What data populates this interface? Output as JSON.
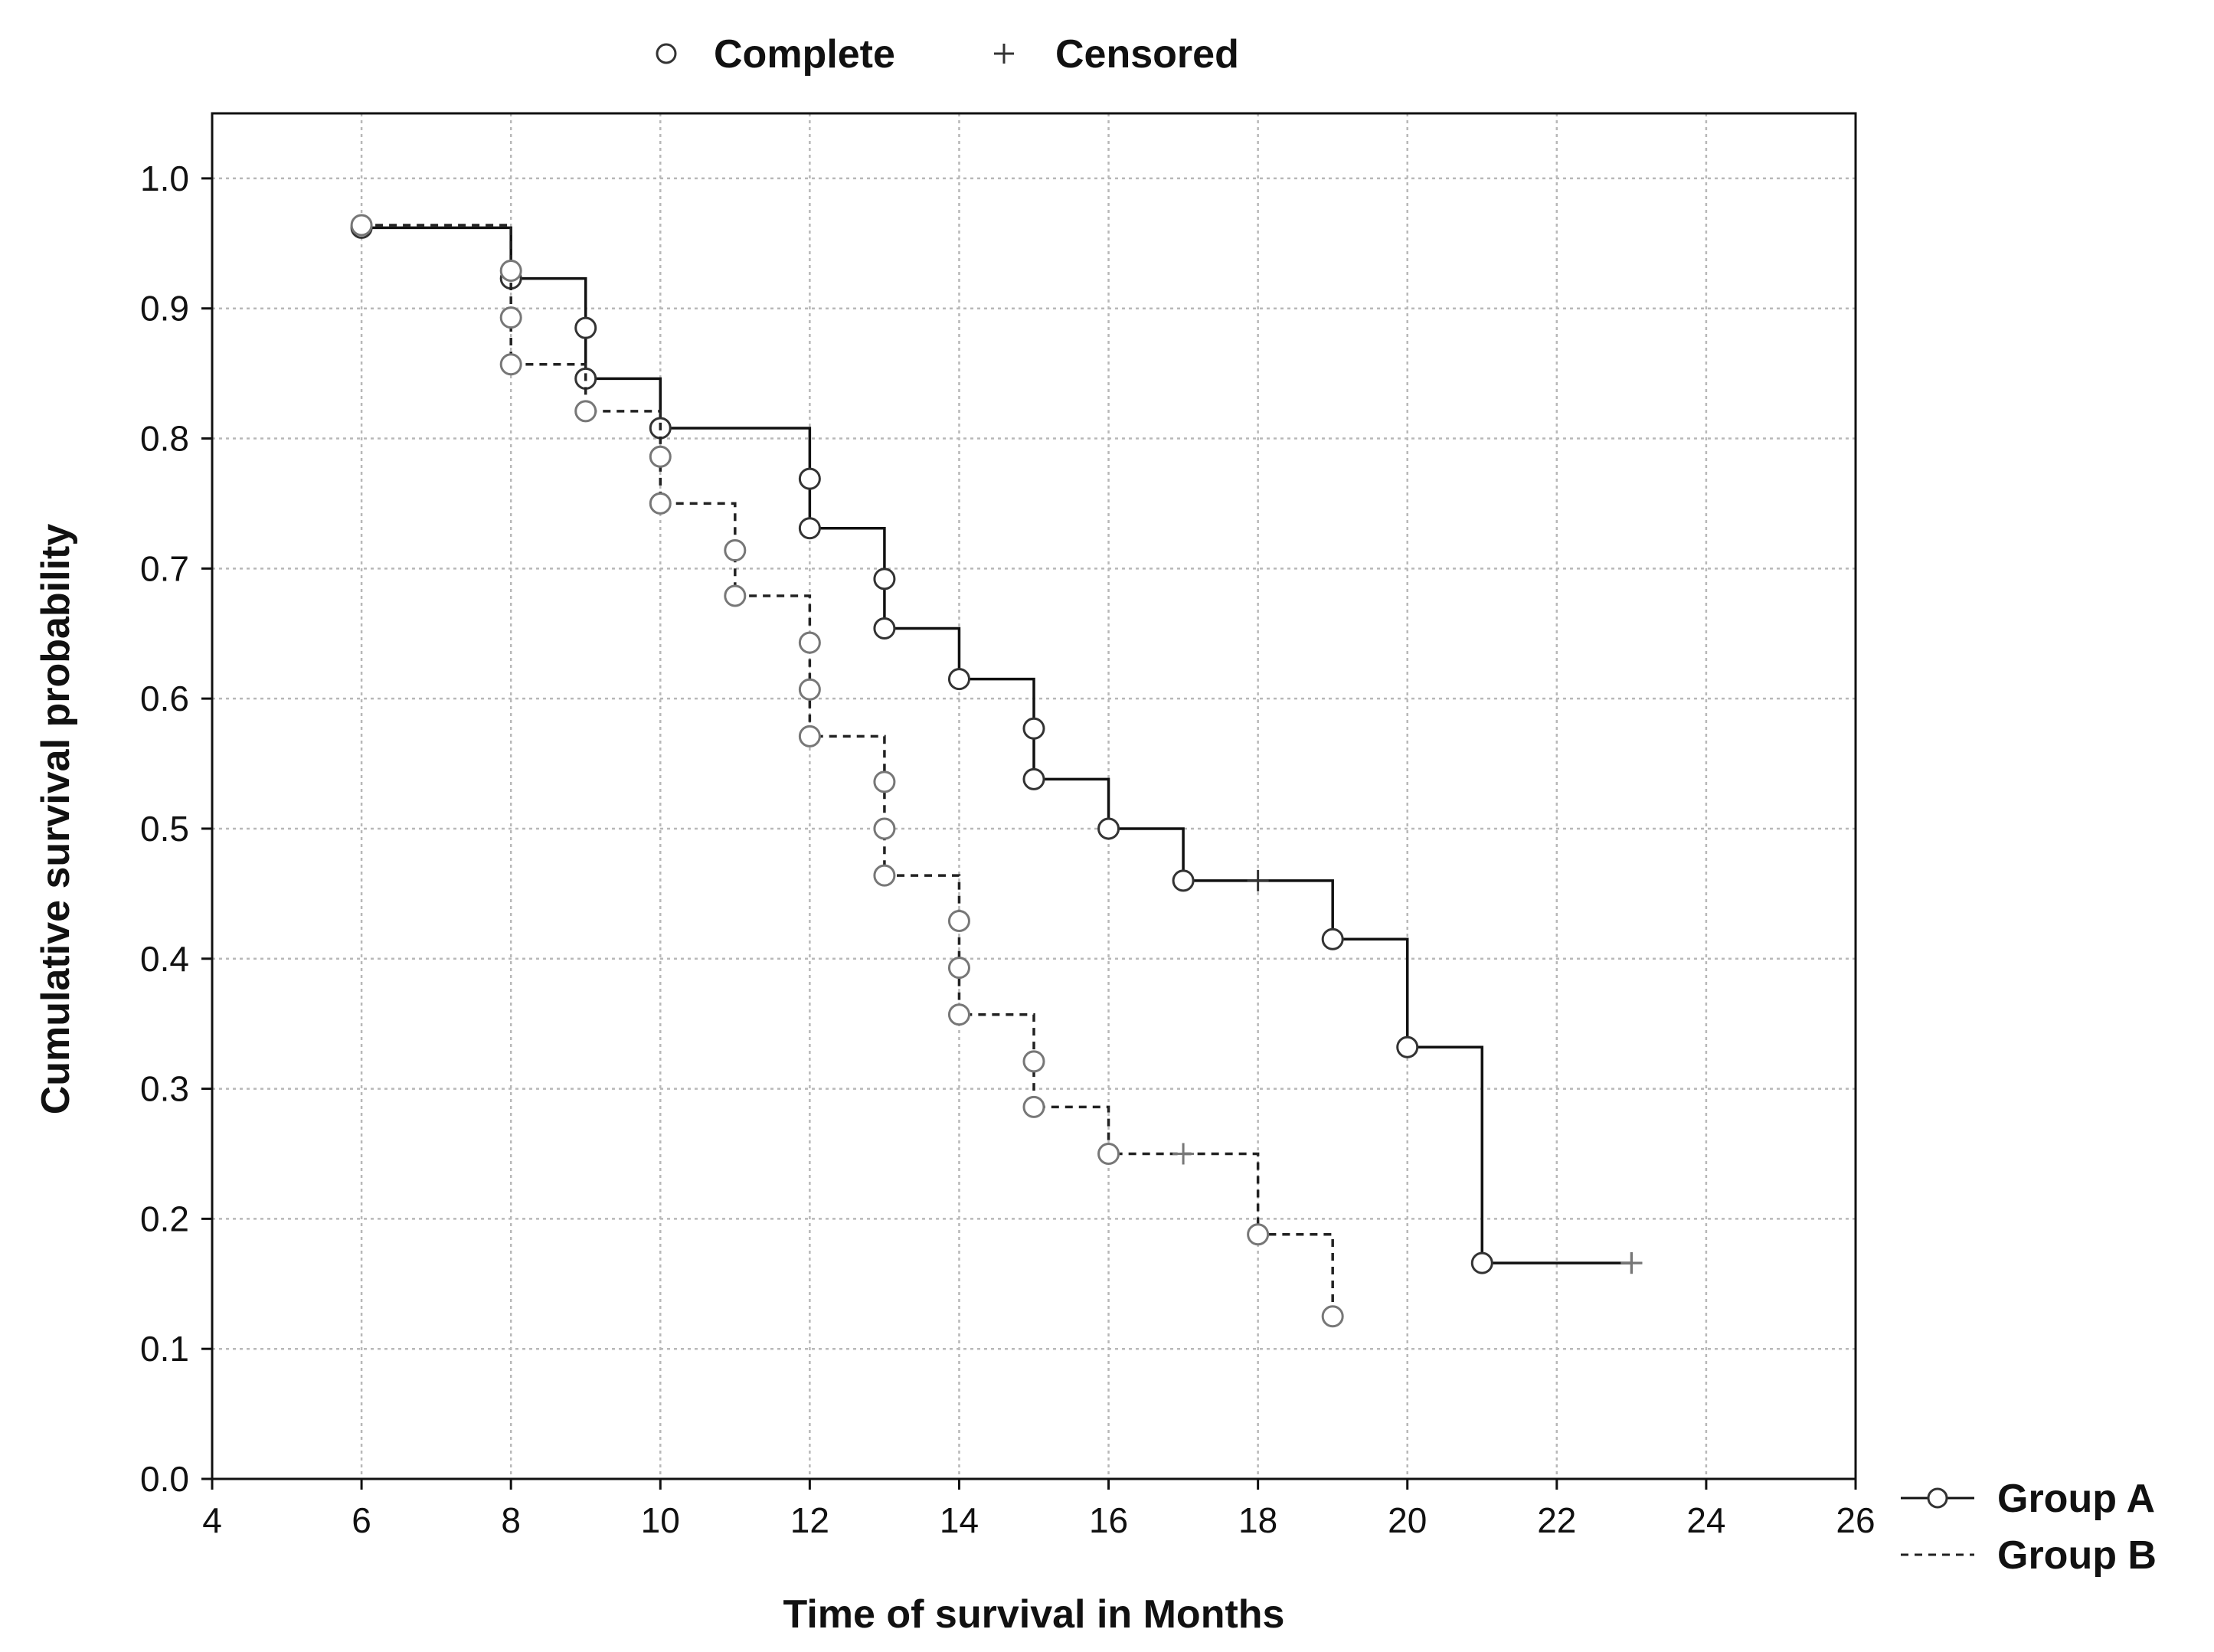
{
  "chart_data": {
    "type": "line",
    "subtype": "kaplan-meier step",
    "title": "",
    "xlabel": "Time of survival in Months",
    "ylabel": "Cumulative survival probability",
    "xlim": [
      4,
      26
    ],
    "ylim": [
      0.0,
      1.05
    ],
    "xticks": [
      4,
      6,
      8,
      10,
      12,
      14,
      16,
      18,
      20,
      22,
      24,
      26
    ],
    "yticks": [
      0.0,
      0.1,
      0.2,
      0.3,
      0.4,
      0.5,
      0.6,
      0.7,
      0.8,
      0.9,
      1.0
    ],
    "xtick_labels": [
      "4",
      "6",
      "8",
      "10",
      "12",
      "14",
      "16",
      "18",
      "20",
      "22",
      "24",
      "26"
    ],
    "ytick_labels": [
      "0.0",
      "0.1",
      "0.2",
      "0.3",
      "0.4",
      "0.5",
      "0.6",
      "0.7",
      "0.8",
      "0.9",
      "1.0"
    ],
    "grid": true,
    "marker_legend": {
      "placement": "top",
      "complete_label": "Complete",
      "censored_label": "Censored",
      "complete_symbol": "○",
      "censored_symbol": "+"
    },
    "series_legend_placement": "bottom-right",
    "series": [
      {
        "name": "Group A",
        "line_style": "solid",
        "color": "#111111",
        "steps": [
          [
            6,
            0.962
          ],
          [
            8,
            0.923
          ],
          [
            9,
            0.846
          ],
          [
            10,
            0.808
          ],
          [
            12,
            0.731
          ],
          [
            13,
            0.654
          ],
          [
            14,
            0.615
          ],
          [
            15,
            0.538
          ],
          [
            16,
            0.5
          ],
          [
            17,
            0.46
          ],
          [
            19,
            0.415
          ],
          [
            20,
            0.332
          ],
          [
            21,
            0.166
          ]
        ],
        "end_x": 23,
        "complete_points": [
          [
            6,
            0.962
          ],
          [
            8,
            0.923
          ],
          [
            9,
            0.885
          ],
          [
            9,
            0.846
          ],
          [
            10,
            0.808
          ],
          [
            12,
            0.769
          ],
          [
            12,
            0.731
          ],
          [
            13,
            0.692
          ],
          [
            13,
            0.654
          ],
          [
            14,
            0.615
          ],
          [
            15,
            0.577
          ],
          [
            15,
            0.538
          ],
          [
            16,
            0.5
          ],
          [
            17,
            0.46
          ],
          [
            19,
            0.415
          ],
          [
            20,
            0.332
          ],
          [
            21,
            0.166
          ]
        ],
        "censored_points": [
          [
            18,
            0.46
          ],
          [
            23,
            0.166
          ]
        ]
      },
      {
        "name": "Group B",
        "line_style": "dashed",
        "color": "#222222",
        "steps": [
          [
            6,
            0.964
          ],
          [
            8,
            0.857
          ],
          [
            9,
            0.821
          ],
          [
            10,
            0.75
          ],
          [
            11,
            0.679
          ],
          [
            12,
            0.571
          ],
          [
            13,
            0.464
          ],
          [
            14,
            0.357
          ],
          [
            15,
            0.286
          ],
          [
            16,
            0.25
          ],
          [
            18,
            0.188
          ],
          [
            19,
            0.125
          ]
        ],
        "end_x": 19,
        "complete_points": [
          [
            6,
            0.964
          ],
          [
            8,
            0.929
          ],
          [
            8,
            0.893
          ],
          [
            8,
            0.857
          ],
          [
            9,
            0.821
          ],
          [
            10,
            0.786
          ],
          [
            10,
            0.75
          ],
          [
            11,
            0.714
          ],
          [
            11,
            0.679
          ],
          [
            12,
            0.643
          ],
          [
            12,
            0.607
          ],
          [
            12,
            0.571
          ],
          [
            13,
            0.536
          ],
          [
            13,
            0.5
          ],
          [
            13,
            0.464
          ],
          [
            14,
            0.429
          ],
          [
            14,
            0.393
          ],
          [
            14,
            0.357
          ],
          [
            15,
            0.321
          ],
          [
            15,
            0.286
          ],
          [
            16,
            0.25
          ],
          [
            18,
            0.188
          ],
          [
            19,
            0.125
          ]
        ],
        "censored_points": [
          [
            17,
            0.25
          ],
          [
            23,
            0.166
          ]
        ]
      }
    ],
    "colors": {
      "marker_fill": "#ffffff",
      "marker_stroke_a": "#333333",
      "marker_stroke_b": "#777777",
      "grid": "#b8b8b8",
      "axis": "#111111"
    }
  }
}
